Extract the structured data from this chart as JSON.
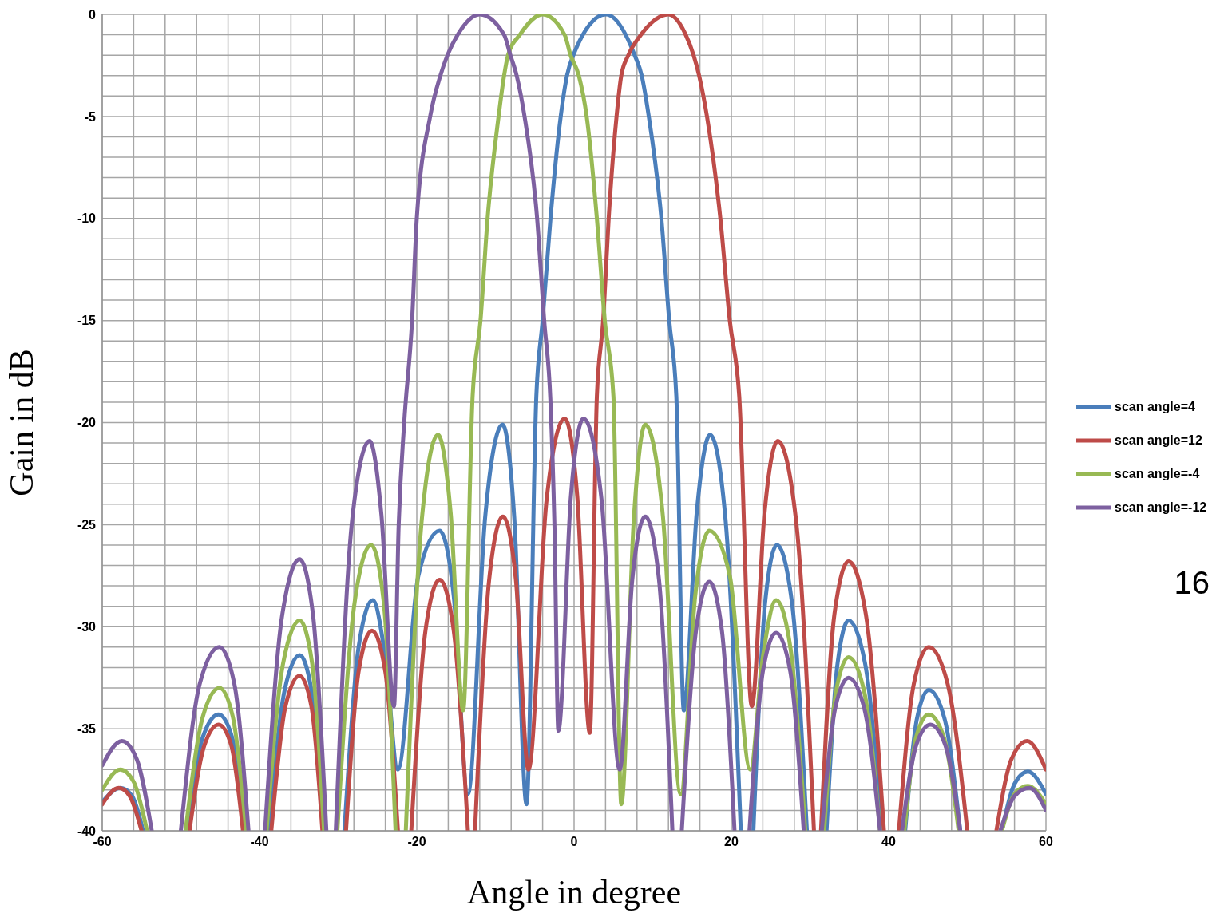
{
  "chart_data": {
    "type": "line",
    "xlabel": "Angle in degree",
    "ylabel": "Gain in dB",
    "xlim": [
      -60,
      60
    ],
    "ylim": [
      -40,
      0
    ],
    "xticks": [
      -60,
      {
        "value": -56,
        "label": null
      },
      {
        "value": -52,
        "label": null
      },
      {
        "value": -48,
        "label": null
      },
      {
        "value": -44,
        "label": null
      },
      -40,
      {
        "value": -36,
        "label": null
      },
      {
        "value": -32,
        "label": null
      },
      {
        "value": -28,
        "label": null
      },
      {
        "value": -24,
        "label": null
      },
      -20,
      {
        "value": -16,
        "label": null
      },
      {
        "value": -12,
        "label": null
      },
      {
        "value": -8,
        "label": null
      },
      {
        "value": -4,
        "label": null
      },
      0,
      {
        "value": 4,
        "label": null
      },
      {
        "value": 8,
        "label": null
      },
      {
        "value": 12,
        "label": null
      },
      {
        "value": 16,
        "label": null
      },
      20,
      {
        "value": 24,
        "label": null
      },
      {
        "value": 28,
        "label": null
      },
      {
        "value": 32,
        "label": null
      },
      {
        "value": 36,
        "label": null
      },
      40,
      {
        "value": 44,
        "label": null
      },
      {
        "value": 48,
        "label": null
      },
      {
        "value": 52,
        "label": null
      },
      {
        "value": 56,
        "label": null
      },
      60
    ],
    "yticks": [
      -40,
      {
        "value": -39,
        "label": null
      },
      {
        "value": -38,
        "label": null
      },
      {
        "value": -37,
        "label": null
      },
      {
        "value": -36,
        "label": null
      },
      -35,
      {
        "value": -34,
        "label": null
      },
      {
        "value": -33,
        "label": null
      },
      {
        "value": -32,
        "label": null
      },
      {
        "value": -31,
        "label": null
      },
      -30,
      {
        "value": -29,
        "label": null
      },
      {
        "value": -28,
        "label": null
      },
      {
        "value": -27,
        "label": null
      },
      {
        "value": -26,
        "label": null
      },
      -25,
      {
        "value": -24,
        "label": null
      },
      {
        "value": -23,
        "label": null
      },
      {
        "value": -22,
        "label": null
      },
      {
        "value": -21,
        "label": null
      },
      -20,
      {
        "value": -19,
        "label": null
      },
      {
        "value": -18,
        "label": null
      },
      {
        "value": -17,
        "label": null
      },
      {
        "value": -16,
        "label": null
      },
      -15,
      {
        "value": -14,
        "label": null
      },
      {
        "value": -13,
        "label": null
      },
      {
        "value": -12,
        "label": null
      },
      {
        "value": -11,
        "label": null
      },
      -10,
      {
        "value": -9,
        "label": null
      },
      {
        "value": -8,
        "label": null
      },
      {
        "value": -7,
        "label": null
      },
      {
        "value": -6,
        "label": null
      },
      -5,
      {
        "value": -4,
        "label": null
      },
      {
        "value": -3,
        "label": null
      },
      {
        "value": -2,
        "label": null
      },
      {
        "value": -1,
        "label": null
      },
      0
    ],
    "grid": true,
    "legend": "right",
    "marker": "none",
    "line_style": "solid",
    "annotations": [
      "16"
    ],
    "series": [
      {
        "name": "scan angle=4",
        "color": "#4a7ebb",
        "x": [
          -60,
          -57.7,
          -56.2,
          -54.8,
          -52,
          -49.3,
          -47.2,
          -45.2,
          -43.5,
          -41.8,
          -40.3,
          -38.8,
          -36.8,
          -34.9,
          -33.4,
          -31.9,
          -30.5,
          -29.2,
          -27.4,
          -25.6,
          -24,
          -22.4,
          -19.8,
          -17.1,
          -15.3,
          -13.5,
          -11.3,
          -9.1,
          -7.6,
          -6.05,
          -4.8,
          -4,
          -3,
          -1.7,
          -0.9,
          -0.1,
          4.05,
          7.7,
          8.6,
          9.5,
          11.1,
          12.1,
          13,
          13.95,
          15.6,
          17.3,
          19.2,
          21.2,
          22,
          22.8,
          24.3,
          25.8,
          27.7,
          29.6,
          30.8,
          32.1,
          33.5,
          34.9,
          37,
          39.1,
          40.6,
          42.1,
          43.6,
          45.1,
          47.1,
          49.1,
          51.8,
          54.4,
          56,
          57.7,
          60
        ],
        "values": [
          -38.6,
          -37.9,
          -38.3,
          -40,
          null,
          -40,
          -35.4,
          -34.3,
          -35.4,
          -40,
          null,
          -40,
          -33.1,
          -31.4,
          -33.1,
          -40,
          null,
          -40,
          -31,
          -28.7,
          -31.5,
          -37,
          -27.5,
          -25.3,
          -28.5,
          -38.2,
          -24.6,
          -20.1,
          -24.7,
          -38.7,
          -18.7,
          -15,
          -10,
          -5,
          -3,
          -2,
          0,
          -2,
          -3,
          -5,
          -10,
          -15,
          -18.7,
          -34.1,
          -24.4,
          -20.6,
          -24.5,
          -40,
          null,
          -40,
          -28.8,
          -26,
          -28.8,
          -40,
          null,
          -40,
          -31.8,
          -29.7,
          -31.8,
          -40,
          null,
          -40,
          -34.5,
          -33.1,
          -34.5,
          -40,
          null,
          -40,
          -37.7,
          -37.1,
          -38.2
        ]
      },
      {
        "name": "scan angle=12",
        "color": "#be4b48",
        "x": [
          -60,
          -57.9,
          -56.5,
          -55,
          -52,
          -48.9,
          -47,
          -45.2,
          -43.6,
          -42.1,
          -40.3,
          -38.5,
          -36.7,
          -34.9,
          -33.4,
          -32,
          -30.5,
          -29,
          -27.4,
          -25.7,
          -24,
          -22.4,
          -21.6,
          -20.7,
          -18.9,
          -17.1,
          -15.3,
          -13.5,
          -13,
          -12.6,
          -10.8,
          -9.05,
          -7.4,
          -5.8,
          -3.5,
          -1.2,
          0.4,
          2,
          2.9,
          3.7,
          4.4,
          5.4,
          6,
          6.9,
          8.5,
          12,
          14.2,
          15.2,
          15.9,
          16.9,
          18.6,
          19.8,
          21,
          22.6,
          24.2,
          25.9,
          28.2,
          30.5,
          31,
          31.4,
          33.1,
          34.9,
          37.1,
          39.4,
          40.4,
          41.3,
          43.2,
          45.1,
          47.5,
          50,
          51.8,
          53.7,
          55.6,
          57.6,
          60
        ],
        "values": [
          -38.7,
          -37.9,
          -38.3,
          -40,
          null,
          -40,
          -35.8,
          -34.8,
          -35.8,
          -40,
          null,
          -40,
          -33.9,
          -32.4,
          -33.9,
          -40,
          null,
          -40,
          -32.2,
          -30.2,
          -32.2,
          -40,
          null,
          -40,
          -30.2,
          -27.7,
          -30.2,
          -40,
          null,
          -40,
          -27.7,
          -24.6,
          -27.7,
          -37,
          -23.8,
          -19.8,
          -23.6,
          -35.2,
          -18.7,
          -15,
          -10,
          -5,
          -3,
          -2,
          -1,
          0,
          -1,
          -2,
          -3,
          -5,
          -10,
          -15,
          -18.7,
          -33.9,
          -24.5,
          -20.9,
          -24.7,
          -40,
          null,
          -40,
          -29.4,
          -26.8,
          -29.4,
          -40,
          null,
          -40,
          -32.8,
          -31,
          -32.8,
          -40,
          null,
          -40,
          -36.5,
          -35.6,
          -37
        ]
      },
      {
        "name": "scan angle=-4",
        "color": "#98b954",
        "x": [
          -60,
          -57.7,
          -56,
          -54.3,
          -51.8,
          -49.4,
          -47.2,
          -45.1,
          -43.4,
          -41.7,
          -40.4,
          -39.1,
          -37,
          -34.9,
          -33.3,
          -31.8,
          -30.9,
          -30.1,
          -27.9,
          -25.8,
          -24.2,
          -22.7,
          -22,
          -21.4,
          -19.3,
          -17.3,
          -15.7,
          -14.1,
          -12.9,
          -11.9,
          -11,
          -9.6,
          -8.9,
          -8.4,
          -6.9,
          -4,
          -1.2,
          -0.45,
          0.6,
          1.6,
          2.9,
          3.9,
          5,
          6,
          7.6,
          9.05,
          11.3,
          13.55,
          15.4,
          17.2,
          19.8,
          22.4,
          24,
          25.7,
          27.5,
          29.4,
          30.6,
          31.8,
          33.3,
          34.9,
          36.9,
          38.9,
          40.4,
          42,
          43.5,
          45.1,
          47,
          48.9,
          51.6,
          54.4,
          56,
          57.7,
          60
        ],
        "values": [
          -38,
          -37,
          -37.6,
          -40,
          null,
          -40,
          -34.4,
          -33,
          -34.4,
          -40,
          null,
          -40,
          -31.8,
          -29.7,
          -31.8,
          -40,
          null,
          -40,
          -28.8,
          -26,
          -28.8,
          -40,
          null,
          -40,
          -24.5,
          -20.6,
          -24.4,
          -34.1,
          -18.7,
          -15,
          -10,
          -5,
          -3,
          -2,
          -1,
          0,
          -1,
          -2,
          -3,
          -5,
          -10,
          -15,
          -18.7,
          -38.7,
          -24.7,
          -20.1,
          -24.6,
          -38.2,
          -28.5,
          -25.3,
          -27.5,
          -37,
          -31.5,
          -28.7,
          -31,
          -40,
          null,
          -40,
          -33.2,
          -31.5,
          -33.2,
          -40,
          null,
          -40,
          -35.4,
          -34.3,
          -35.4,
          -40,
          null,
          -40,
          -38.2,
          -37.8,
          -38.7
        ]
      },
      {
        "name": "scan angle=-12",
        "color": "#7d60a0",
        "x": [
          -60,
          -57.5,
          -55.6,
          -53.7,
          -51.9,
          -50,
          -47.6,
          -45.1,
          -43.2,
          -41.4,
          -40.3,
          -39.3,
          -37.1,
          -34.9,
          -33.2,
          -31.5,
          -30.9,
          -30.3,
          -28.2,
          -26,
          -24.5,
          -22.9,
          -22.3,
          -21.6,
          -20.6,
          -20,
          -18.3,
          -17,
          -16.1,
          -14.8,
          -12,
          -8.9,
          -8.1,
          -7.3,
          -6.3,
          -4.7,
          -3.8,
          -3,
          -2.5,
          -2,
          -0.4,
          1.2,
          3.5,
          5.8,
          7.4,
          9.05,
          10.8,
          12.5,
          13.1,
          13.7,
          15.5,
          17.2,
          18.8,
          20.4,
          21.3,
          22.3,
          24,
          25.7,
          27.5,
          29.2,
          30.4,
          31.5,
          33.2,
          34.9,
          36.9,
          38.9,
          40.3,
          41.7,
          43.5,
          45.3,
          47.2,
          49.1,
          51.6,
          54.2,
          56,
          57.9,
          60
        ],
        "values": [
          -36.8,
          -35.6,
          -36.5,
          -40,
          null,
          -40,
          -32.8,
          -31,
          -32.8,
          -40,
          null,
          -40,
          -29.4,
          -26.7,
          -29.4,
          -40,
          null,
          -40,
          -24.7,
          -20.9,
          -24.5,
          -33.9,
          -25,
          -20,
          -15,
          -10,
          -5,
          -3,
          -2,
          -1,
          0,
          -1,
          -2,
          -3,
          -5,
          -10,
          -15,
          -19,
          -25,
          -35.1,
          -23.6,
          -19.8,
          -23.8,
          -37,
          -27.7,
          -24.6,
          -27.7,
          -40,
          null,
          -40,
          -30.2,
          -27.8,
          -30.2,
          -40,
          null,
          -40,
          -32.2,
          -30.3,
          -32.2,
          -40,
          null,
          -40,
          -34,
          -32.5,
          -34,
          -40,
          null,
          -40,
          -35.8,
          -34.8,
          -35.8,
          -40,
          null,
          -40,
          -38.3,
          -37.9,
          -39
        ]
      }
    ]
  }
}
